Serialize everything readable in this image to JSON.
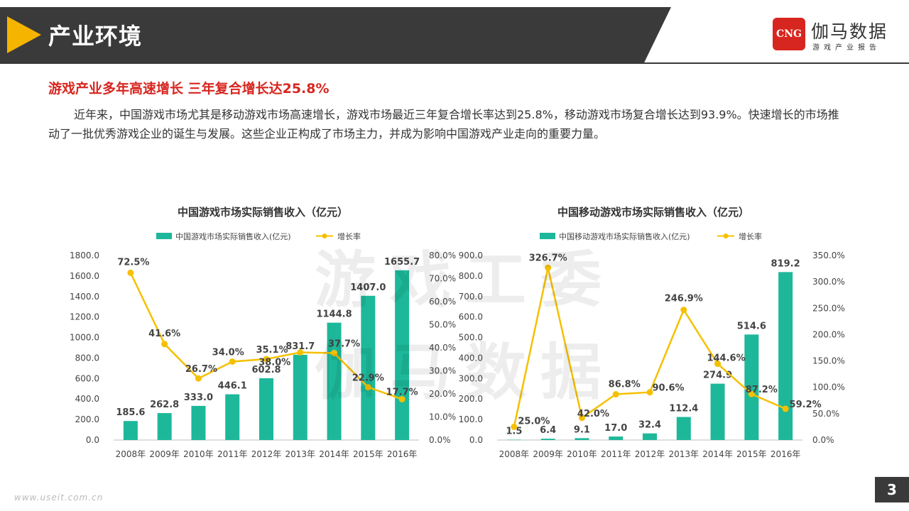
{
  "header": {
    "title": "产业环境"
  },
  "logo": {
    "mark": "CNG",
    "name": "伽马数据",
    "sub": "游戏产业报告"
  },
  "subtitle": "游戏产业多年高速增长 三年复合增长达25.8%",
  "paragraph": "近年来，中国游戏市场尤其是移动游戏市场高速增长，游戏市场最近三年复合增长率达到25.8%，移动游戏市场复合增长达到93.9%。快速增长的市场推动了一批优秀游戏企业的诞生与发展。这些企业正构成了市场主力，并成为影响中国游戏产业走向的重要力量。",
  "watermark": {
    "line1": "游戏工委",
    "line2": "伽马数据"
  },
  "footer": {
    "url": "www.useit.com.cn",
    "page": "3"
  },
  "colors": {
    "bar": "#1db89a",
    "line": "#f5c000",
    "accent": "#d7261f",
    "header": "#3a3a3a"
  },
  "chart_data": [
    {
      "type": "bar",
      "title": "中国游戏市场实际销售收入（亿元）",
      "categories": [
        "2008年",
        "2009年",
        "2010年",
        "2011年",
        "2012年",
        "2013年",
        "2014年",
        "2015年",
        "2016年"
      ],
      "series": [
        {
          "name": "中国游戏市场实际销售收入(亿元)",
          "type": "bar",
          "axis": "left",
          "values": [
            185.6,
            262.8,
            333.0,
            446.1,
            602.8,
            831.7,
            1144.8,
            1407.0,
            1655.7
          ],
          "labels": [
            "185.6",
            "262.8",
            "333.0",
            "446.1",
            "602.8",
            "831.7",
            "1144.8",
            "1407.0",
            "1655.7"
          ]
        },
        {
          "name": "增长率",
          "type": "line",
          "axis": "right",
          "values": [
            72.5,
            41.6,
            26.7,
            34.0,
            35.1,
            38.0,
            37.7,
            22.9,
            17.7
          ],
          "labels": [
            "72.5%",
            "41.6%",
            "26.7%",
            "34.0%",
            "35.1%",
            "38.0%",
            "37.7%",
            "22.9%",
            "17.7%"
          ]
        }
      ],
      "y_left": {
        "min": 0,
        "max": 1800,
        "ticks": [
          "0.0",
          "200.0",
          "400.0",
          "600.0",
          "800.0",
          "1000.0",
          "1200.0",
          "1400.0",
          "1600.0",
          "1800.0"
        ]
      },
      "y_right": {
        "min": 0,
        "max": 80,
        "ticks": [
          "0.0%",
          "10.0%",
          "20.0%",
          "30.0%",
          "40.0%",
          "50.0%",
          "60.0%",
          "70.0%",
          "80.0%"
        ]
      },
      "legend": "top-center",
      "grid": false
    },
    {
      "type": "bar",
      "title": "中国移动游戏市场实际销售收入（亿元）",
      "categories": [
        "2008年",
        "2009年",
        "2010年",
        "2011年",
        "2012年",
        "2013年",
        "2014年",
        "2015年",
        "2016年"
      ],
      "series": [
        {
          "name": "中国移动游戏市场实际销售收入(亿元)",
          "type": "bar",
          "axis": "left",
          "values": [
            1.5,
            6.4,
            9.1,
            17.0,
            32.4,
            112.4,
            274.9,
            514.6,
            819.2
          ],
          "labels": [
            "1.5",
            "6.4",
            "9.1",
            "17.0",
            "32.4",
            "112.4",
            "274.9",
            "514.6",
            "819.2"
          ]
        },
        {
          "name": "增长率",
          "type": "line",
          "axis": "right",
          "values": [
            25.0,
            326.7,
            42.0,
            86.8,
            90.6,
            246.9,
            144.6,
            87.2,
            59.2
          ],
          "labels": [
            "25.0%",
            "326.7%",
            "42.0%",
            "86.8%",
            "90.6%",
            "246.9%",
            "144.6%",
            "87.2%",
            "59.2%"
          ]
        }
      ],
      "y_left": {
        "min": 0,
        "max": 900,
        "ticks": [
          "0.0",
          "100.0",
          "200.0",
          "300.0",
          "400.0",
          "500.0",
          "600.0",
          "700.0",
          "800.0",
          "900.0"
        ]
      },
      "y_right": {
        "min": 0,
        "max": 350,
        "ticks": [
          "0.0%",
          "50.0%",
          "100.0%",
          "150.0%",
          "200.0%",
          "250.0%",
          "300.0%",
          "350.0%"
        ]
      },
      "legend": "top-center",
      "grid": false
    }
  ]
}
